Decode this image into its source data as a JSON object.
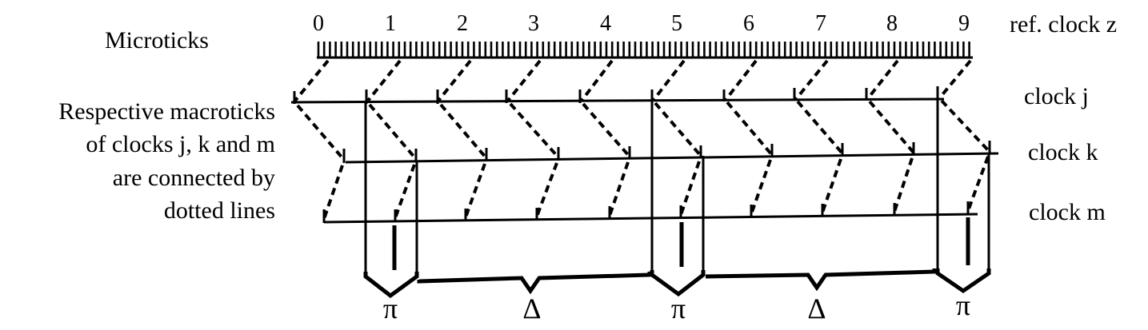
{
  "microticks_label": "Microticks",
  "ref_clock_label": "ref. clock z",
  "description_lines": [
    "Respective macroticks",
    "of clocks j,  k  and  m",
    "are connected by",
    "dotted lines"
  ],
  "clocks": [
    {
      "id": "j",
      "label": "clock j"
    },
    {
      "id": "k",
      "label": "clock k"
    },
    {
      "id": "m",
      "label": "clock m"
    }
  ],
  "ref_tick_numbers": [
    "0",
    "1",
    "2",
    "3",
    "4",
    "5",
    "6",
    "7",
    "8",
    "9"
  ],
  "bracket_symbols": [
    "π",
    "Δ",
    "π",
    "Δ",
    "π"
  ]
}
